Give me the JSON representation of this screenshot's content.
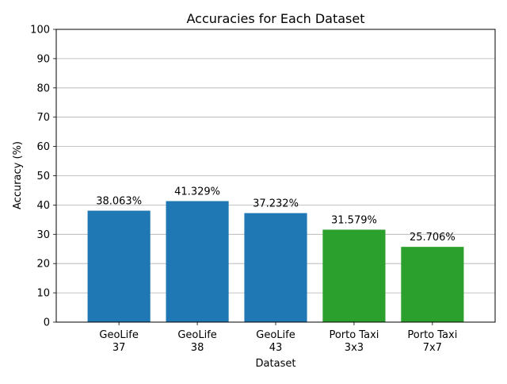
{
  "chart_data": {
    "type": "bar",
    "title": "Accuracies for Each Dataset",
    "xlabel": "Dataset",
    "ylabel": "Accuracy (%)",
    "ylim": [
      0,
      100
    ],
    "yticks": [
      "0",
      "10",
      "20",
      "30",
      "40",
      "50",
      "60",
      "70",
      "80",
      "90",
      "100"
    ],
    "grid": "horizontal",
    "categories": [
      {
        "line1": "GeoLife",
        "line2": "37"
      },
      {
        "line1": "GeoLife",
        "line2": "38"
      },
      {
        "line1": "GeoLife",
        "line2": "43"
      },
      {
        "line1": "Porto Taxi",
        "line2": "3x3"
      },
      {
        "line1": "Porto Taxi",
        "line2": "7x7"
      }
    ],
    "values": [
      38.063,
      41.329,
      37.232,
      31.579,
      25.706
    ],
    "value_labels": [
      "38.063%",
      "41.329%",
      "37.232%",
      "31.579%",
      "25.706%"
    ],
    "colors": [
      "#1f77b4",
      "#1f77b4",
      "#1f77b4",
      "#2ca02c",
      "#2ca02c"
    ]
  }
}
